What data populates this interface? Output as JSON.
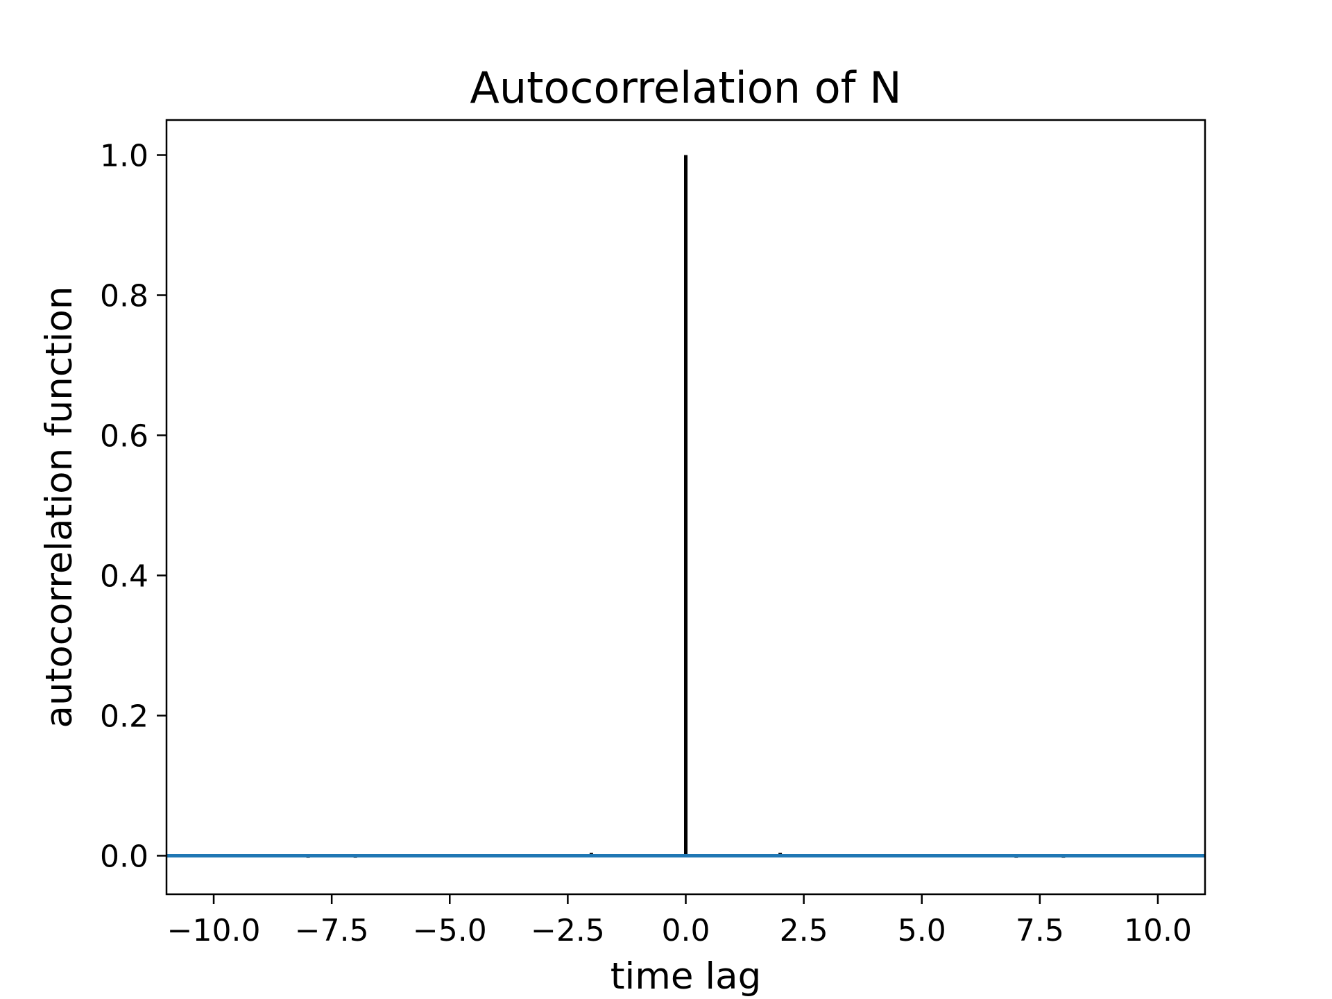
{
  "chart_data": {
    "type": "bar",
    "title": "Autocorrelation of N",
    "xlabel": "time lag",
    "ylabel": "autocorrelation function",
    "xlim": [
      -11,
      11
    ],
    "ylim": [
      -0.055,
      1.05
    ],
    "xticks": [
      -10.0,
      -7.5,
      -5.0,
      -2.5,
      0.0,
      2.5,
      5.0,
      7.5,
      10.0
    ],
    "xtick_labels": [
      "−10.0",
      "−7.5",
      "−5.0",
      "−2.5",
      "0.0",
      "2.5",
      "5.0",
      "7.5",
      "10.0"
    ],
    "yticks": [
      0.0,
      0.2,
      0.4,
      0.6,
      0.8,
      1.0
    ],
    "ytick_labels": [
      "0.0",
      "0.2",
      "0.4",
      "0.6",
      "0.8",
      "1.0"
    ],
    "grid": false,
    "series": [
      {
        "style": "vertical lines from zero",
        "color": "#000000",
        "x": [
          -10,
          -9,
          -8,
          -7,
          -6,
          -5,
          -4,
          -3,
          -2,
          -1,
          0,
          1,
          2,
          3,
          4,
          5,
          6,
          7,
          8,
          9,
          10
        ],
        "y": [
          0.0,
          0.0,
          -0.003,
          -0.003,
          0.0,
          0.0,
          0.0,
          0.0,
          0.004,
          0.0,
          1.0,
          0.0,
          0.004,
          0.0,
          0.0,
          0.0,
          0.0,
          -0.003,
          -0.003,
          0.0,
          0.0
        ]
      },
      {
        "style": "horizontal line at y = 0",
        "color": "#1f77b4",
        "y": 0.0
      }
    ]
  }
}
